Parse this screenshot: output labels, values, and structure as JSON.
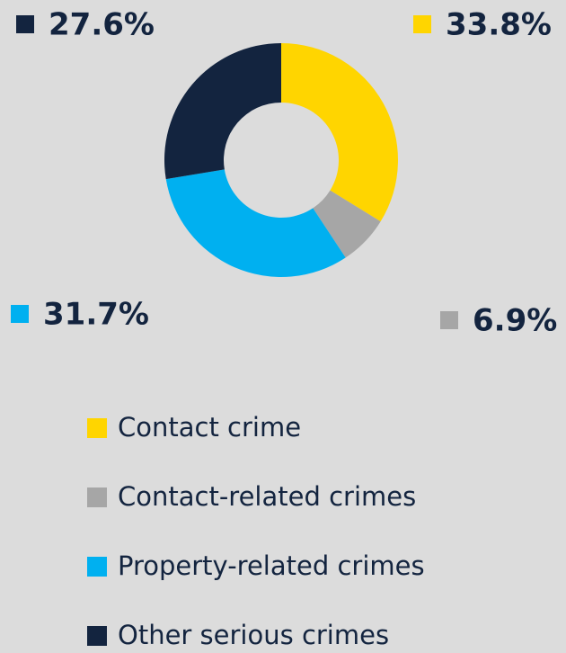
{
  "chart_data": {
    "type": "pie",
    "categories": [
      "Contact crime",
      "Contact-related crimes",
      "Property-related crimes",
      "Other serious crimes"
    ],
    "values": [
      33.8,
      6.9,
      31.7,
      27.6
    ],
    "value_labels": [
      "33.8%",
      "6.9%",
      "31.7%",
      "27.6%"
    ],
    "colors": [
      "#FFD500",
      "#A6A6A6",
      "#00B0F0",
      "#13243F"
    ],
    "donut": true
  }
}
